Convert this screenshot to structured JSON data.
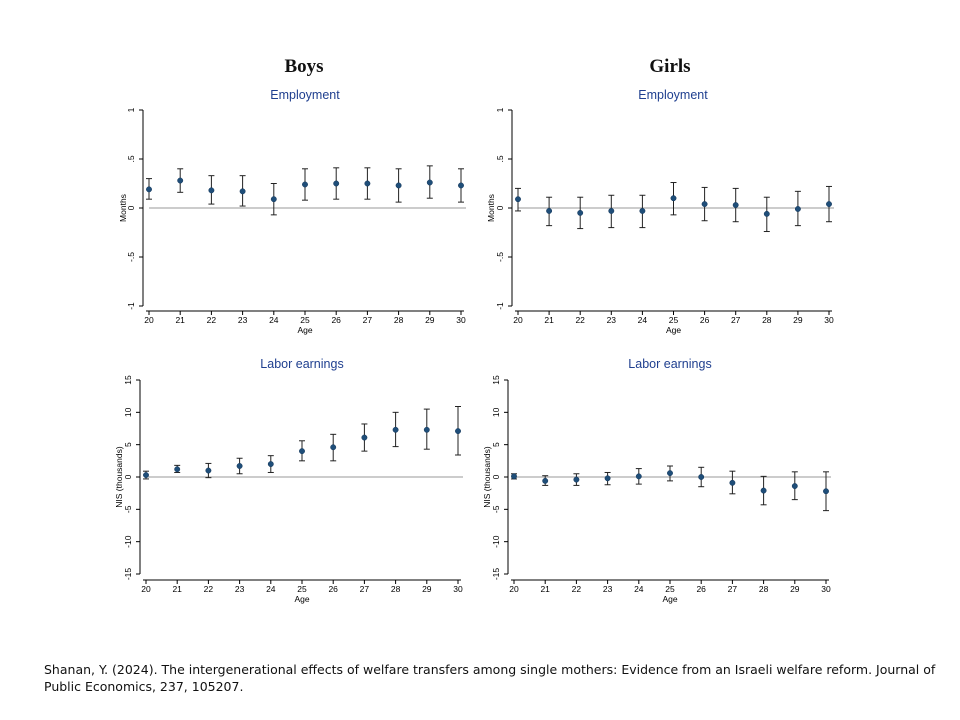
{
  "titles": {
    "left": "Boys",
    "right": "Girls"
  },
  "citation": "Shanan, Y. (2024). The intergenerational effects of welfare transfers among single mothers: Evidence from an Israeli welfare reform. Journal of Public Economics, 237, 105207.",
  "colors": {
    "point": "#1f4e79",
    "title": "#1f3f8f",
    "zero_line": "#9a9a9a",
    "axis": "#000000"
  },
  "chart_data": [
    {
      "id": "boys-employment",
      "type": "scatter",
      "title": "Employment",
      "xlabel": "Age",
      "ylabel": "Months",
      "x": [
        20,
        21,
        22,
        23,
        24,
        25,
        26,
        27,
        28,
        29,
        30
      ],
      "y": [
        0.19,
        0.28,
        0.18,
        0.17,
        0.09,
        0.24,
        0.25,
        0.25,
        0.23,
        0.26,
        0.23
      ],
      "ci_low": [
        0.09,
        0.16,
        0.04,
        0.02,
        -0.07,
        0.08,
        0.09,
        0.09,
        0.06,
        0.1,
        0.06
      ],
      "ci_high": [
        0.3,
        0.4,
        0.33,
        0.33,
        0.25,
        0.4,
        0.41,
        0.41,
        0.4,
        0.43,
        0.4
      ],
      "xlim": [
        20,
        30
      ],
      "ylim": [
        -1,
        1
      ],
      "yticks": [
        -1,
        -0.5,
        0,
        0.5,
        1
      ],
      "ytick_labels": [
        "-1",
        "-.5",
        "0",
        ".5",
        "1"
      ],
      "show_xlabel": true
    },
    {
      "id": "girls-employment",
      "type": "scatter",
      "title": "Employment",
      "xlabel": "Age",
      "ylabel": "Months",
      "x": [
        20,
        21,
        22,
        23,
        24,
        25,
        26,
        27,
        28,
        29,
        30
      ],
      "y": [
        0.09,
        -0.03,
        -0.05,
        -0.03,
        -0.03,
        0.1,
        0.04,
        0.03,
        -0.06,
        -0.01,
        0.04
      ],
      "ci_low": [
        -0.03,
        -0.18,
        -0.21,
        -0.2,
        -0.2,
        -0.07,
        -0.13,
        -0.14,
        -0.24,
        -0.18,
        -0.14
      ],
      "ci_high": [
        0.2,
        0.11,
        0.11,
        0.13,
        0.13,
        0.26,
        0.21,
        0.2,
        0.11,
        0.17,
        0.22
      ],
      "xlim": [
        20,
        30
      ],
      "ylim": [
        -1,
        1
      ],
      "yticks": [
        -1,
        -0.5,
        0,
        0.5,
        1
      ],
      "ytick_labels": [
        "-1",
        "-.5",
        "0",
        ".5",
        "1"
      ],
      "show_xlabel": true
    },
    {
      "id": "boys-earnings",
      "type": "scatter",
      "title": "Labor earnings",
      "xlabel": "Age",
      "ylabel": "NIS (thousands)",
      "x": [
        20,
        21,
        22,
        23,
        24,
        25,
        26,
        27,
        28,
        29,
        30
      ],
      "y": [
        0.3,
        1.2,
        1.0,
        1.7,
        2.0,
        4.0,
        4.6,
        6.1,
        7.3,
        7.3,
        7.1
      ],
      "ci_low": [
        -0.3,
        0.7,
        -0.1,
        0.5,
        0.7,
        2.5,
        2.5,
        4.0,
        4.7,
        4.3,
        3.4
      ],
      "ci_high": [
        0.9,
        1.8,
        2.1,
        2.9,
        3.3,
        5.6,
        6.6,
        8.2,
        10.0,
        10.5,
        10.9
      ],
      "xlim": [
        20,
        30
      ],
      "ylim": [
        -15,
        15
      ],
      "yticks": [
        -15,
        -10,
        -5,
        0,
        5,
        10,
        15
      ],
      "ytick_labels": [
        "-15",
        "-10",
        "-5",
        "0",
        "5",
        "10",
        "15"
      ],
      "show_xlabel": true
    },
    {
      "id": "girls-earnings",
      "type": "scatter",
      "title": "Labor earnings",
      "xlabel": "Age",
      "ylabel": "NIS (thousands)",
      "x": [
        20,
        21,
        22,
        23,
        24,
        25,
        26,
        27,
        28,
        29,
        30
      ],
      "y": [
        0.1,
        -0.6,
        -0.4,
        -0.2,
        0.1,
        0.6,
        0.0,
        -0.9,
        -2.1,
        -1.4,
        -2.2
      ],
      "ci_low": [
        -0.3,
        -1.3,
        -1.3,
        -1.2,
        -1.1,
        -0.6,
        -1.5,
        -2.6,
        -4.3,
        -3.5,
        -5.2
      ],
      "ci_high": [
        0.5,
        0.2,
        0.5,
        0.7,
        1.3,
        1.7,
        1.5,
        0.9,
        0.1,
        0.8,
        0.8
      ],
      "xlim": [
        20,
        30
      ],
      "ylim": [
        -15,
        15
      ],
      "yticks": [
        -15,
        -10,
        -5,
        0,
        5,
        10,
        15
      ],
      "ytick_labels": [
        "-15",
        "-10",
        "-5",
        "0",
        "5",
        "10",
        "15"
      ],
      "show_xlabel": true
    }
  ]
}
